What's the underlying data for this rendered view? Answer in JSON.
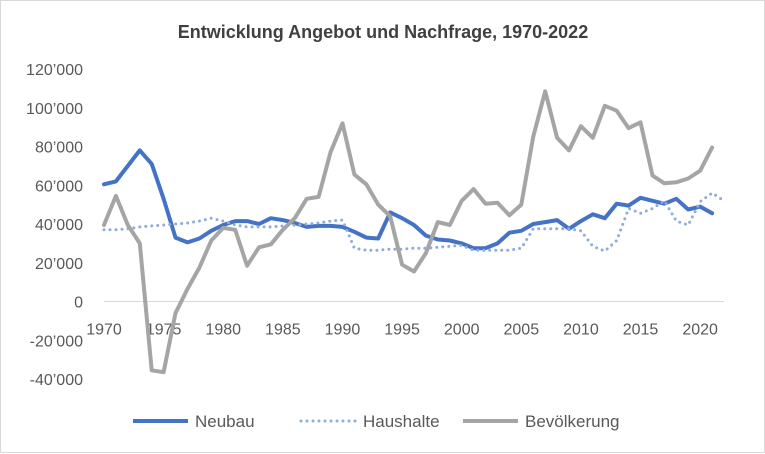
{
  "chart_data": {
    "type": "line",
    "title": "Entwicklung Angebot und Nachfrage, 1970-2022",
    "xlabel": "",
    "ylabel": "",
    "x_ticks": [
      "1970",
      "1975",
      "1980",
      "1985",
      "1990",
      "1995",
      "2000",
      "2005",
      "2010",
      "2015",
      "2020"
    ],
    "y_ticks": [
      "120’000",
      "100’000",
      "80’000",
      "60’000",
      "40’000",
      "20’000",
      "0",
      "-20’000",
      "-40’000"
    ],
    "xlim": [
      1970,
      2022
    ],
    "ylim": [
      -40000,
      120000
    ],
    "grid": "none",
    "legend_position": "bottom",
    "x": [
      1970,
      1971,
      1972,
      1973,
      1974,
      1975,
      1976,
      1977,
      1978,
      1979,
      1980,
      1981,
      1982,
      1983,
      1984,
      1985,
      1986,
      1987,
      1988,
      1989,
      1990,
      1991,
      1992,
      1993,
      1994,
      1995,
      1996,
      1997,
      1998,
      1999,
      2000,
      2001,
      2002,
      2003,
      2004,
      2005,
      2006,
      2007,
      2008,
      2009,
      2010,
      2011,
      2012,
      2013,
      2014,
      2015,
      2016,
      2017,
      2018,
      2019,
      2020,
      2021,
      2022
    ],
    "series": [
      {
        "name": "Neubau",
        "color": "#4472c4",
        "style": "solid",
        "values": [
          60500,
          62000,
          70000,
          78000,
          71000,
          53000,
          33000,
          30500,
          32500,
          36500,
          39500,
          41500,
          41500,
          40000,
          43000,
          42000,
          40500,
          38500,
          39000,
          39000,
          38500,
          36000,
          33000,
          32500,
          46000,
          43000,
          39500,
          34000,
          32000,
          31500,
          30000,
          27500,
          27500,
          30000,
          35500,
          36500,
          40000,
          41000,
          42000,
          37500,
          41500,
          45000,
          43000,
          50500,
          49500,
          53500,
          52000,
          50500,
          53000,
          47500,
          49000,
          45500,
          null
        ]
      },
      {
        "name": "Haushalte",
        "color": "#8faadc",
        "style": "dotted",
        "values": [
          37000,
          37000,
          37500,
          38500,
          39000,
          39500,
          40000,
          40500,
          41500,
          43000,
          41500,
          39500,
          38500,
          38500,
          38500,
          39000,
          39500,
          40000,
          40500,
          41500,
          42000,
          27500,
          26500,
          26500,
          27000,
          27000,
          27500,
          27500,
          28000,
          28500,
          29000,
          26500,
          26500,
          26500,
          26500,
          27500,
          37500,
          37500,
          37500,
          37500,
          36500,
          28500,
          26000,
          31500,
          48000,
          45500,
          48000,
          52000,
          41500,
          39500,
          51500,
          56000,
          52000
        ]
      },
      {
        "name": "Bevölkerung",
        "color": "#a5a5a5",
        "style": "solid",
        "values": [
          39500,
          54500,
          39500,
          30000,
          -35500,
          -36500,
          -6000,
          6500,
          17500,
          31500,
          38000,
          37000,
          18500,
          28000,
          29500,
          37000,
          43000,
          53000,
          54000,
          77000,
          92000,
          65500,
          60500,
          50000,
          44000,
          19000,
          15500,
          25000,
          41000,
          39500,
          52000,
          58000,
          50500,
          51000,
          44500,
          50000,
          85000,
          108500,
          84500,
          78000,
          90500,
          84500,
          101000,
          98500,
          89500,
          92500,
          65000,
          61000,
          61500,
          63500,
          67500,
          79500,
          null
        ]
      }
    ]
  }
}
